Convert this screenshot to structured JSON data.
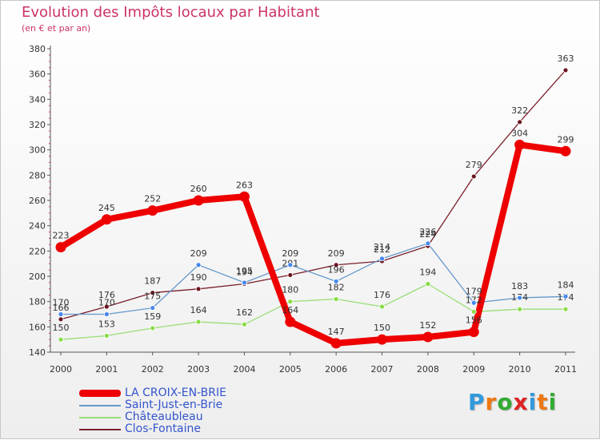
{
  "title": "Evolution des Impôts locaux par Habitant",
  "subtitle": "(en € et par an)",
  "brand": {
    "letters": [
      {
        "ch": "P",
        "color": "#3399dd"
      },
      {
        "ch": "r",
        "color": "#ee7711"
      },
      {
        "ch": "o",
        "color": "#33aa33"
      },
      {
        "ch": "x",
        "color": "#dd2222"
      },
      {
        "ch": "i",
        "color": "#3399dd"
      },
      {
        "ch": "t",
        "color": "#ee7711"
      },
      {
        "ch": "i",
        "color": "#33aa33"
      }
    ]
  },
  "chart_data": {
    "type": "line",
    "title": "Evolution des Impôts locaux par Habitant",
    "subtitle": "(en € et par an)",
    "xlabel": "",
    "ylabel": "",
    "ylim": [
      140,
      380
    ],
    "yticks": [
      140,
      160,
      180,
      200,
      220,
      240,
      260,
      280,
      300,
      320,
      340,
      360,
      380
    ],
    "grid": false,
    "legend_position": "bottom-left",
    "categories": [
      "2000",
      "2001",
      "2002",
      "2003",
      "2004",
      "2005",
      "2006",
      "2007",
      "2008",
      "2009",
      "2010",
      "2011"
    ],
    "series": [
      {
        "name": "Clos-Fontaine",
        "color": "#7a1f2b",
        "marker": "#6b1520",
        "emphasis": false,
        "values": [
          166,
          176,
          187,
          190,
          194,
          201,
          209,
          212,
          224,
          279,
          322,
          363
        ]
      },
      {
        "name": "Châteaubleau",
        "color": "#99dd77",
        "marker": "#88dd44",
        "emphasis": false,
        "values": [
          150,
          153,
          159,
          164,
          162,
          180,
          182,
          176,
          194,
          172,
          174,
          174
        ]
      },
      {
        "name": "Saint-Just-en-Brie",
        "color": "#6699cc",
        "marker": "#4488ee",
        "emphasis": false,
        "values": [
          170,
          170,
          175,
          209,
          195,
          209,
          196,
          214,
          226,
          179,
          183,
          184
        ]
      },
      {
        "name": "LA CROIX-EN-BRIE",
        "color": "#ee0000",
        "marker": "#ee0000",
        "emphasis": true,
        "values": [
          223,
          245,
          252,
          260,
          263,
          164,
          147,
          150,
          152,
          156,
          304,
          299
        ]
      }
    ],
    "legend": [
      {
        "name": "LA CROIX-EN-BRIE",
        "color": "#ee0000",
        "text_color": "#3355cc",
        "emphasis": true
      },
      {
        "name": "Saint-Just-en-Brie",
        "color": "#6699cc",
        "text_color": "#3355cc",
        "emphasis": false
      },
      {
        "name": "Châteaubleau",
        "color": "#99dd77",
        "text_color": "#3355cc",
        "emphasis": false
      },
      {
        "name": "Clos-Fontaine",
        "color": "#7a1f2b",
        "text_color": "#3355cc",
        "emphasis": false
      }
    ]
  }
}
